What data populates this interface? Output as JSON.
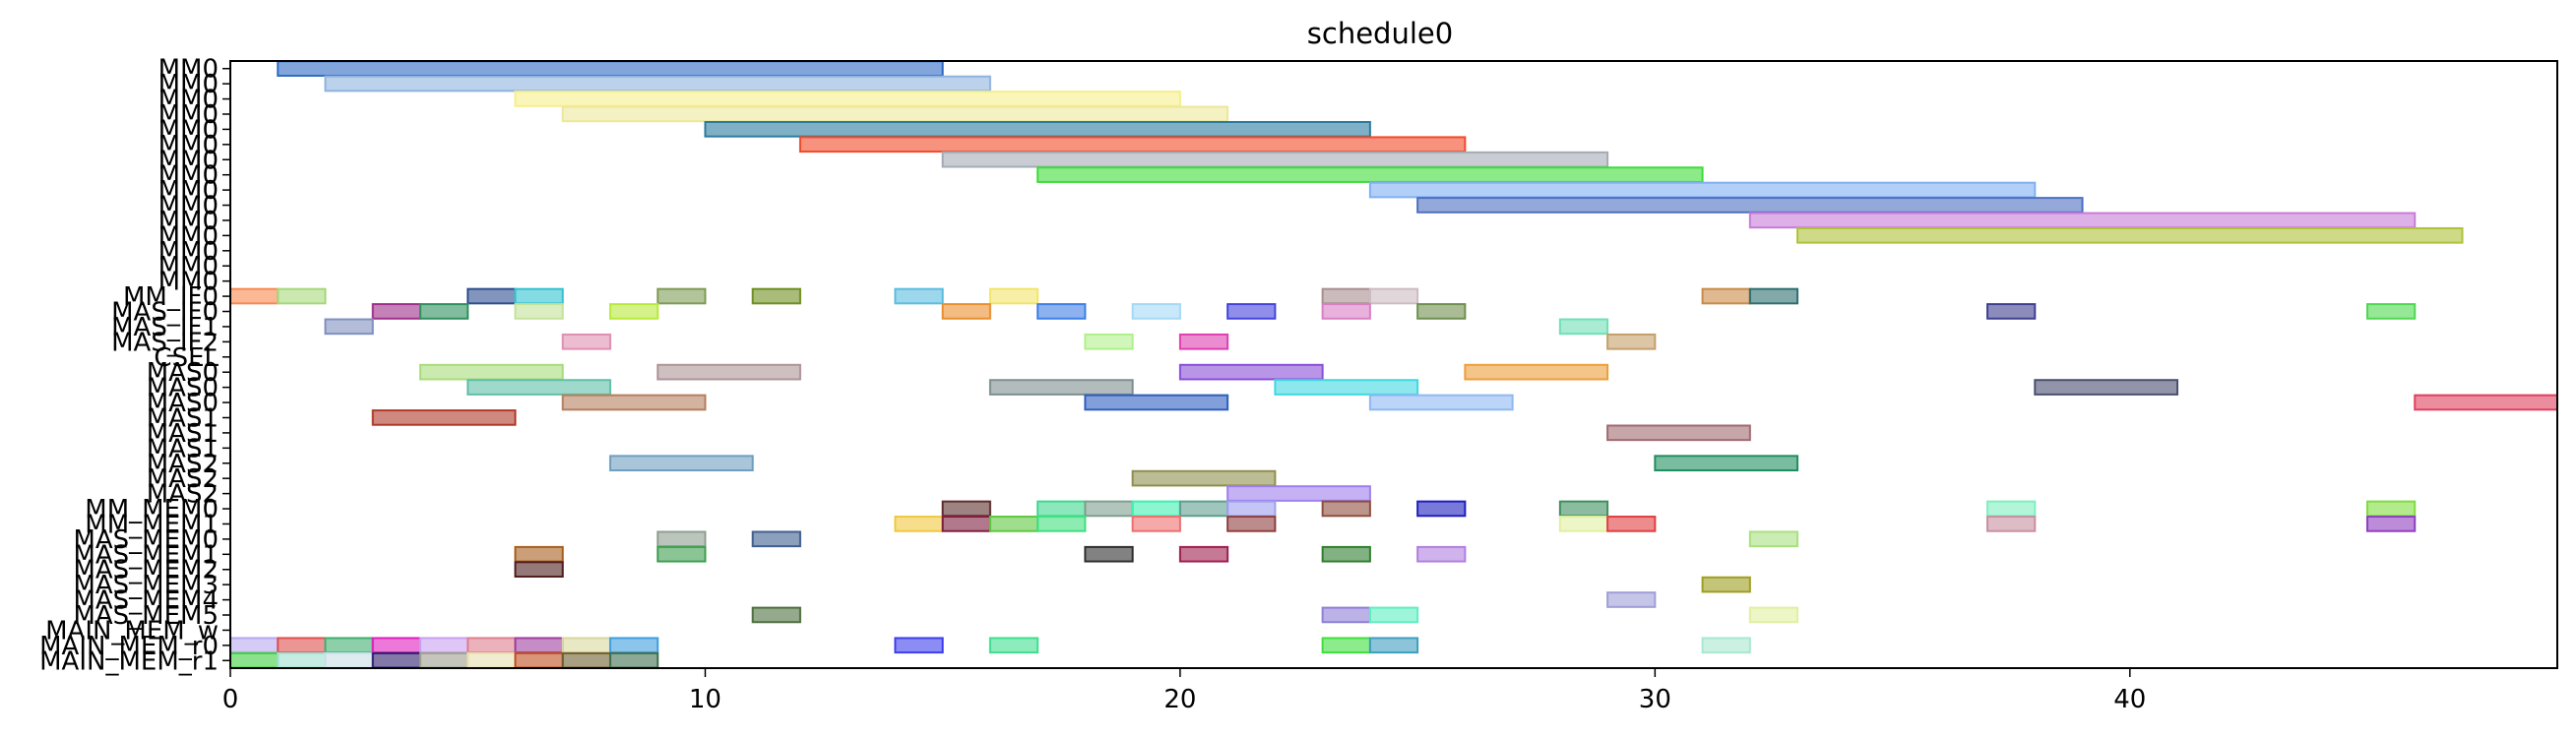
{
  "chart_data": {
    "type": "gantt",
    "title": "schedule0",
    "xlabel": "",
    "ylabel": "",
    "xlim": [
      0,
      49
    ],
    "xticks": [
      0,
      10,
      20,
      30,
      40
    ],
    "grid": false,
    "rows": [
      "MM0",
      "MM0",
      "MM0",
      "MM0",
      "MM0",
      "MM0",
      "MM0",
      "MM0",
      "MM0",
      "MM0",
      "MM0",
      "MM0",
      "MM0",
      "MM0",
      "MM0",
      "MM_IF0",
      "MAS_IF0",
      "MAS_IF1",
      "MAS_IF2",
      "CSEL",
      "MAS0",
      "MAS0",
      "MAS0",
      "MAS1",
      "MAS1",
      "MAS1",
      "MAS2",
      "MAS2",
      "MAS2",
      "MM_MEM0",
      "MM_MEM1",
      "MAS_MEM0",
      "MAS_MEM1",
      "MAS_MEM2",
      "MAS_MEM3",
      "MAS_MEM4",
      "MAS_MEM5",
      "MAIN_MEM_w",
      "MAIN_MEM_r0",
      "MAIN_MEM_r1"
    ],
    "tasks": [
      {
        "row": 0,
        "start": 1,
        "end": 15,
        "color": "#2e6bc4"
      },
      {
        "row": 1,
        "start": 2,
        "end": 16,
        "color": "#8fb3e0"
      },
      {
        "row": 2,
        "start": 6,
        "end": 20,
        "color": "#f6ef8a"
      },
      {
        "row": 3,
        "start": 7,
        "end": 21,
        "color": "#ece79a"
      },
      {
        "row": 4,
        "start": 10,
        "end": 24,
        "color": "#2a7b9e"
      },
      {
        "row": 5,
        "start": 12,
        "end": 26,
        "color": "#f14a2a"
      },
      {
        "row": 6,
        "start": 15,
        "end": 29,
        "color": "#a5abb5"
      },
      {
        "row": 7,
        "start": 17,
        "end": 31,
        "color": "#3fdc3a"
      },
      {
        "row": 8,
        "start": 24,
        "end": 38,
        "color": "#7fb0f2"
      },
      {
        "row": 9,
        "start": 25,
        "end": 39,
        "color": "#4c70c2"
      },
      {
        "row": 10,
        "start": 32,
        "end": 46,
        "color": "#c77bd8"
      },
      {
        "row": 11,
        "start": 33,
        "end": 47,
        "color": "#afc23a"
      },
      {
        "row": 15,
        "start": 0,
        "end": 1,
        "color": "#f8884f"
      },
      {
        "row": 15,
        "start": 1,
        "end": 2,
        "color": "#a6d87a"
      },
      {
        "row": 15,
        "start": 5,
        "end": 6,
        "color": "#2f4f8f"
      },
      {
        "row": 15,
        "start": 6,
        "end": 7,
        "color": "#33c3d0"
      },
      {
        "row": 15,
        "start": 9,
        "end": 10,
        "color": "#7f9c55"
      },
      {
        "row": 15,
        "start": 11,
        "end": 12,
        "color": "#6f8f20"
      },
      {
        "row": 15,
        "start": 14,
        "end": 15,
        "color": "#5bbde0"
      },
      {
        "row": 15,
        "start": 16,
        "end": 17,
        "color": "#f3e46a"
      },
      {
        "row": 15,
        "start": 23,
        "end": 24,
        "color": "#a88e90"
      },
      {
        "row": 15,
        "start": 24,
        "end": 25,
        "color": "#cdbcc3"
      },
      {
        "row": 15,
        "start": 31,
        "end": 32,
        "color": "#c98b47"
      },
      {
        "row": 15,
        "start": 32,
        "end": 33,
        "color": "#2f6f6f"
      },
      {
        "row": 16,
        "start": 3,
        "end": 4,
        "color": "#9f2f8a"
      },
      {
        "row": 16,
        "start": 4,
        "end": 5,
        "color": "#2f8f5f"
      },
      {
        "row": 16,
        "start": 6,
        "end": 7,
        "color": "#c3e39a"
      },
      {
        "row": 16,
        "start": 8,
        "end": 9,
        "color": "#b8ea3a"
      },
      {
        "row": 16,
        "start": 15,
        "end": 16,
        "color": "#e98f2f"
      },
      {
        "row": 16,
        "start": 17,
        "end": 18,
        "color": "#3f7fe6"
      },
      {
        "row": 16,
        "start": 19,
        "end": 20,
        "color": "#a5d9f5"
      },
      {
        "row": 16,
        "start": 21,
        "end": 22,
        "color": "#4444dd"
      },
      {
        "row": 16,
        "start": 23,
        "end": 24,
        "color": "#d97fc4"
      },
      {
        "row": 16,
        "start": 25,
        "end": 26,
        "color": "#6f8f4f"
      },
      {
        "row": 16,
        "start": 37,
        "end": 38,
        "color": "#3f3f8f"
      },
      {
        "row": 16,
        "start": 45,
        "end": 46,
        "color": "#4fd84f"
      },
      {
        "row": 17,
        "start": 2,
        "end": 3,
        "color": "#8090c0"
      },
      {
        "row": 17,
        "start": 28,
        "end": 29,
        "color": "#6fe0b5"
      },
      {
        "row": 18,
        "start": 7,
        "end": 8,
        "color": "#e08fb0"
      },
      {
        "row": 18,
        "start": 18,
        "end": 19,
        "color": "#b0f08a"
      },
      {
        "row": 18,
        "start": 20,
        "end": 21,
        "color": "#e03fb0"
      },
      {
        "row": 18,
        "start": 29,
        "end": 30,
        "color": "#c4a06a"
      },
      {
        "row": 20,
        "start": 4,
        "end": 7,
        "color": "#a8dc7a"
      },
      {
        "row": 20,
        "start": 9,
        "end": 12,
        "color": "#ad9498"
      },
      {
        "row": 20,
        "start": 20,
        "end": 23,
        "color": "#8a4fd8"
      },
      {
        "row": 20,
        "start": 26,
        "end": 29,
        "color": "#ec9f3a"
      },
      {
        "row": 21,
        "start": 5,
        "end": 8,
        "color": "#5fc0a8"
      },
      {
        "row": 21,
        "start": 16,
        "end": 19,
        "color": "#7f8f8f"
      },
      {
        "row": 21,
        "start": 22,
        "end": 25,
        "color": "#3fd8e0"
      },
      {
        "row": 21,
        "start": 38,
        "end": 41,
        "color": "#4a4f6f"
      },
      {
        "row": 22,
        "start": 7,
        "end": 10,
        "color": "#b57f5f"
      },
      {
        "row": 22,
        "start": 18,
        "end": 21,
        "color": "#2f5fc0"
      },
      {
        "row": 22,
        "start": 24,
        "end": 27,
        "color": "#8fb8f2"
      },
      {
        "row": 22,
        "start": 46,
        "end": 49,
        "color": "#e0405f"
      },
      {
        "row": 23,
        "start": 3,
        "end": 6,
        "color": "#b03a2a"
      },
      {
        "row": 24,
        "start": 29,
        "end": 32,
        "color": "#a06a70"
      },
      {
        "row": 26,
        "start": 8,
        "end": 11,
        "color": "#6f9fc0"
      },
      {
        "row": 26,
        "start": 30,
        "end": 33,
        "color": "#1f8f5f"
      },
      {
        "row": 27,
        "start": 19,
        "end": 22,
        "color": "#8f8f4f"
      },
      {
        "row": 28,
        "start": 21,
        "end": 24,
        "color": "#9f7fef"
      },
      {
        "row": 29,
        "start": 15,
        "end": 16,
        "color": "#5f2f2f"
      },
      {
        "row": 29,
        "start": 17,
        "end": 18,
        "color": "#3fd890"
      },
      {
        "row": 29,
        "start": 18,
        "end": 19,
        "color": "#7f9f8f"
      },
      {
        "row": 29,
        "start": 19,
        "end": 20,
        "color": "#3ff0b0"
      },
      {
        "row": 29,
        "start": 20,
        "end": 21,
        "color": "#5f9f8f"
      },
      {
        "row": 29,
        "start": 21,
        "end": 22,
        "color": "#9f9fef"
      },
      {
        "row": 29,
        "start": 23,
        "end": 24,
        "color": "#8f4f3f"
      },
      {
        "row": 29,
        "start": 25,
        "end": 26,
        "color": "#1f1fbf"
      },
      {
        "row": 29,
        "start": 28,
        "end": 29,
        "color": "#3f8f5f"
      },
      {
        "row": 29,
        "start": 37,
        "end": 38,
        "color": "#7fefc0"
      },
      {
        "row": 29,
        "start": 45,
        "end": 46,
        "color": "#7fdc3f"
      },
      {
        "row": 30,
        "start": 14,
        "end": 15,
        "color": "#f0c83f"
      },
      {
        "row": 30,
        "start": 15,
        "end": 16,
        "color": "#7f1f3f"
      },
      {
        "row": 30,
        "start": 16,
        "end": 17,
        "color": "#5fc83f"
      },
      {
        "row": 30,
        "start": 17,
        "end": 18,
        "color": "#3fe07f"
      },
      {
        "row": 30,
        "start": 19,
        "end": 20,
        "color": "#ef6f6f"
      },
      {
        "row": 30,
        "start": 21,
        "end": 22,
        "color": "#8f3f3f"
      },
      {
        "row": 30,
        "start": 28,
        "end": 29,
        "color": "#e0f0a0"
      },
      {
        "row": 30,
        "start": 29,
        "end": 30,
        "color": "#e03f3f"
      },
      {
        "row": 30,
        "start": 37,
        "end": 38,
        "color": "#c88fa0"
      },
      {
        "row": 30,
        "start": 45,
        "end": 46,
        "color": "#8f3fbf"
      },
      {
        "row": 31,
        "start": 9,
        "end": 10,
        "color": "#8f9f8f"
      },
      {
        "row": 31,
        "start": 11,
        "end": 12,
        "color": "#3f5f8f"
      },
      {
        "row": 31,
        "start": 32,
        "end": 33,
        "color": "#a8e07f"
      },
      {
        "row": 32,
        "start": 6,
        "end": 7,
        "color": "#a85f1f"
      },
      {
        "row": 32,
        "start": 9,
        "end": 10,
        "color": "#3f9f4f"
      },
      {
        "row": 32,
        "start": 18,
        "end": 19,
        "color": "#2f2f2f"
      },
      {
        "row": 32,
        "start": 20,
        "end": 21,
        "color": "#9f1f4f"
      },
      {
        "row": 32,
        "start": 23,
        "end": 24,
        "color": "#2f7f2f"
      },
      {
        "row": 32,
        "start": 25,
        "end": 26,
        "color": "#b07fe0"
      },
      {
        "row": 33,
        "start": 6,
        "end": 7,
        "color": "#4f1f1f"
      },
      {
        "row": 34,
        "start": 31,
        "end": 32,
        "color": "#9f9f1f"
      },
      {
        "row": 35,
        "start": 29,
        "end": 30,
        "color": "#9f9fd8"
      },
      {
        "row": 36,
        "start": 11,
        "end": 12,
        "color": "#4f6f3f"
      },
      {
        "row": 36,
        "start": 23,
        "end": 24,
        "color": "#8f7fd8"
      },
      {
        "row": 36,
        "start": 24,
        "end": 25,
        "color": "#5fefbf"
      },
      {
        "row": 36,
        "start": 32,
        "end": 33,
        "color": "#e0f0a0"
      },
      {
        "row": 38,
        "start": 0,
        "end": 1,
        "color": "#b8a8f0"
      },
      {
        "row": 38,
        "start": 1,
        "end": 2,
        "color": "#e04f4f"
      },
      {
        "row": 38,
        "start": 2,
        "end": 3,
        "color": "#3faf6f"
      },
      {
        "row": 38,
        "start": 3,
        "end": 4,
        "color": "#e01fc0"
      },
      {
        "row": 38,
        "start": 4,
        "end": 5,
        "color": "#c8a0f0"
      },
      {
        "row": 38,
        "start": 5,
        "end": 6,
        "color": "#e07f8f"
      },
      {
        "row": 38,
        "start": 6,
        "end": 7,
        "color": "#9f3f9f"
      },
      {
        "row": 38,
        "start": 7,
        "end": 8,
        "color": "#d8d89f"
      },
      {
        "row": 38,
        "start": 8,
        "end": 9,
        "color": "#3f9fe0"
      },
      {
        "row": 38,
        "start": 14,
        "end": 15,
        "color": "#3f3fef"
      },
      {
        "row": 38,
        "start": 16,
        "end": 17,
        "color": "#3fdf8f"
      },
      {
        "row": 38,
        "start": 23,
        "end": 24,
        "color": "#3fe03f"
      },
      {
        "row": 38,
        "start": 24,
        "end": 25,
        "color": "#3f9fbf"
      },
      {
        "row": 38,
        "start": 31,
        "end": 32,
        "color": "#a8e8d0"
      },
      {
        "row": 39,
        "start": 0,
        "end": 1,
        "color": "#3fcf3f"
      },
      {
        "row": 39,
        "start": 1,
        "end": 2,
        "color": "#9fdfcf"
      },
      {
        "row": 39,
        "start": 2,
        "end": 3,
        "color": "#c8e0e8"
      },
      {
        "row": 39,
        "start": 3,
        "end": 4,
        "color": "#2f1f6f"
      },
      {
        "row": 39,
        "start": 4,
        "end": 5,
        "color": "#9f9f8f"
      },
      {
        "row": 39,
        "start": 5,
        "end": 6,
        "color": "#e8e0b0"
      },
      {
        "row": 39,
        "start": 6,
        "end": 7,
        "color": "#c04f1f"
      },
      {
        "row": 39,
        "start": 7,
        "end": 8,
        "color": "#6f5f2f"
      },
      {
        "row": 39,
        "start": 8,
        "end": 9,
        "color": "#3f6f4f"
      }
    ]
  }
}
